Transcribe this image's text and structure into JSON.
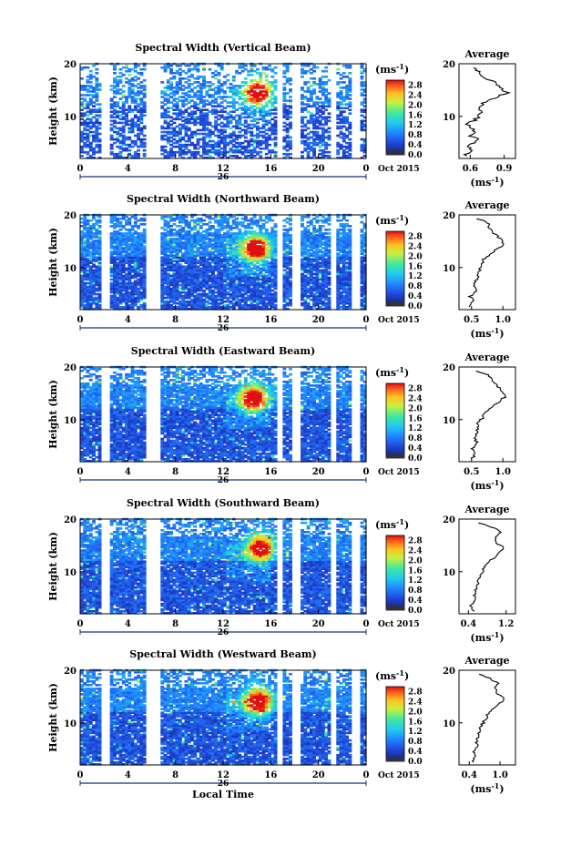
{
  "chart_data": [
    {
      "type": "heatmap",
      "title": "Spectral Width (Vertical Beam)",
      "ylabel": "Height (km)",
      "x_ticks": [
        "0",
        "4",
        "8",
        "12",
        "16",
        "20",
        "0"
      ],
      "y_ticks": [
        "20",
        "10"
      ],
      "xlim": [
        0,
        24
      ],
      "ylim": [
        2,
        20
      ],
      "date_mark": "26",
      "date_note": "Oct 2015",
      "gaps_hours": [
        2,
        5.8,
        6.2,
        16.6,
        18.0,
        21.2,
        23.0
      ],
      "hotspot": {
        "time": 14.8,
        "height": 14.5,
        "value": 2.8
      },
      "colorbar": {
        "unit": "(ms",
        "unit_exp": "-1",
        "unit_close": ")",
        "ticks": [
          "2.8",
          "2.4",
          "2.0",
          "1.6",
          "1.2",
          "0.8",
          "0.4",
          "0.0"
        ],
        "range": [
          0,
          3.0
        ]
      },
      "average": {
        "title": "Average",
        "x_ticks": [
          "0.6",
          "0.9"
        ],
        "xlim": [
          0.5,
          1.0
        ],
        "y_ticks": [
          "20",
          "10"
        ],
        "ylim": [
          2,
          20
        ],
        "xlabel": "(ms",
        "xlabel_exp": "-1",
        "xlabel_close": ")",
        "heights": [
          2.5,
          3.5,
          4.5,
          5.5,
          6.5,
          7.5,
          8.5,
          9.5,
          10.5,
          11.5,
          12.5,
          13.5,
          14.5,
          15.5,
          16.5,
          17.5,
          18.5,
          19.5
        ],
        "values": [
          0.55,
          0.62,
          0.58,
          0.66,
          0.6,
          0.63,
          0.59,
          0.64,
          0.7,
          0.68,
          0.72,
          0.8,
          0.92,
          0.86,
          0.8,
          0.72,
          0.66,
          0.6
        ]
      }
    },
    {
      "type": "heatmap",
      "title": "Spectral Width (Northward Beam)",
      "ylabel": "Height (km)",
      "x_ticks": [
        "0",
        "4",
        "8",
        "12",
        "16",
        "20",
        "0"
      ],
      "y_ticks": [
        "20",
        "10"
      ],
      "xlim": [
        0,
        24
      ],
      "ylim": [
        2,
        20
      ],
      "date_mark": "26",
      "date_note": "Oct 2015",
      "gaps_hours": [
        2,
        5.8,
        6.2,
        16.6,
        18.0,
        21.2,
        23.0
      ],
      "hotspot": {
        "time": 14.6,
        "height": 13.5,
        "value": 2.8
      },
      "colorbar": {
        "unit": "(ms",
        "unit_exp": "-1",
        "unit_close": ")",
        "ticks": [
          "2.8",
          "2.4",
          "2.0",
          "1.6",
          "1.2",
          "0.8",
          "0.4",
          "0.0"
        ],
        "range": [
          0,
          3.0
        ]
      },
      "average": {
        "title": "Average",
        "x_ticks": [
          "0.5",
          "1.0"
        ],
        "xlim": [
          0.3,
          1.2
        ],
        "y_ticks": [
          "20",
          "10"
        ],
        "ylim": [
          2,
          20
        ],
        "xlabel": "(ms",
        "xlabel_exp": "-1",
        "xlabel_close": ")",
        "heights": [
          2.5,
          3.5,
          4.5,
          5.5,
          6.5,
          7.5,
          8.5,
          9.5,
          10.5,
          11.5,
          12.5,
          13.5,
          14.5,
          15.5,
          16.5,
          17.5,
          18.5,
          19.5
        ],
        "values": [
          0.45,
          0.52,
          0.48,
          0.56,
          0.55,
          0.58,
          0.6,
          0.62,
          0.66,
          0.7,
          0.78,
          0.9,
          1.02,
          0.95,
          0.85,
          0.8,
          0.75,
          0.55
        ]
      }
    },
    {
      "type": "heatmap",
      "title": "Spectral Width (Eastward Beam)",
      "ylabel": "Height (km)",
      "x_ticks": [
        "0",
        "4",
        "8",
        "12",
        "16",
        "20",
        "0"
      ],
      "y_ticks": [
        "20",
        "10"
      ],
      "xlim": [
        0,
        24
      ],
      "ylim": [
        2,
        20
      ],
      "date_mark": "26",
      "date_note": "Oct 2015",
      "gaps_hours": [
        2,
        5.8,
        6.2,
        16.6,
        18.0,
        21.2,
        23.0
      ],
      "hotspot": {
        "time": 14.4,
        "height": 14.0,
        "value": 2.8
      },
      "colorbar": {
        "unit": "(ms",
        "unit_exp": "-1",
        "unit_close": ")",
        "ticks": [
          "2.8",
          "2.4",
          "2.0",
          "1.6",
          "1.2",
          "0.8",
          "0.4",
          "0.0"
        ],
        "range": [
          0,
          3.0
        ]
      },
      "average": {
        "title": "Average",
        "x_ticks": [
          "0.5",
          "1.0"
        ],
        "xlim": [
          0.3,
          1.2
        ],
        "y_ticks": [
          "20",
          "10"
        ],
        "ylim": [
          2,
          20
        ],
        "xlabel": "(ms",
        "xlabel_exp": "-1",
        "xlabel_close": ")",
        "heights": [
          2.5,
          3.5,
          4.5,
          5.5,
          6.5,
          7.5,
          8.5,
          9.5,
          10.5,
          11.5,
          12.5,
          13.5,
          14.5,
          15.5,
          16.5,
          17.5,
          18.5,
          19.5
        ],
        "values": [
          0.5,
          0.55,
          0.52,
          0.58,
          0.56,
          0.6,
          0.58,
          0.62,
          0.68,
          0.72,
          0.82,
          0.95,
          1.05,
          0.98,
          0.9,
          0.85,
          0.78,
          0.5
        ]
      }
    },
    {
      "type": "heatmap",
      "title": "Spectral Width (Southward Beam)",
      "ylabel": "Height (km)",
      "x_ticks": [
        "0",
        "4",
        "8",
        "12",
        "16",
        "20",
        "0"
      ],
      "y_ticks": [
        "20",
        "10"
      ],
      "xlim": [
        0,
        24
      ],
      "ylim": [
        2,
        20
      ],
      "date_mark": "26",
      "date_note": "Oct 2015",
      "gaps_hours": [
        2,
        5.8,
        6.2,
        16.6,
        18.0,
        21.2,
        23.0
      ],
      "hotspot": {
        "time": 15.0,
        "height": 14.5,
        "value": 2.6
      },
      "colorbar": {
        "unit": "(ms",
        "unit_exp": "-1",
        "unit_close": ")",
        "ticks": [
          "2.8",
          "2.4",
          "2.0",
          "1.6",
          "1.2",
          "0.8",
          "0.4",
          "0.0"
        ],
        "range": [
          0,
          3.0
        ]
      },
      "average": {
        "title": "Average",
        "x_ticks": [
          "0.4",
          "1.2"
        ],
        "xlim": [
          0.2,
          1.4
        ],
        "y_ticks": [
          "20",
          "10"
        ],
        "ylim": [
          2,
          20
        ],
        "xlabel": "(ms",
        "xlabel_exp": "-1",
        "xlabel_close": ")",
        "heights": [
          2.5,
          3.5,
          4.5,
          5.5,
          6.5,
          7.5,
          8.5,
          9.5,
          10.5,
          11.5,
          12.5,
          13.5,
          14.5,
          15.5,
          16.5,
          17.5,
          18.5,
          19.5
        ],
        "values": [
          0.5,
          0.45,
          0.55,
          0.52,
          0.56,
          0.6,
          0.62,
          0.68,
          0.72,
          0.8,
          0.92,
          1.05,
          1.15,
          1.0,
          0.95,
          1.1,
          0.9,
          0.55
        ]
      }
    },
    {
      "type": "heatmap",
      "title": "Spectral Width (Westward Beam)",
      "ylabel": "Height (km)",
      "x_ticks": [
        "0",
        "4",
        "8",
        "12",
        "16",
        "20",
        "0"
      ],
      "y_ticks": [
        "20",
        "10"
      ],
      "xlim": [
        0,
        24
      ],
      "ylim": [
        2,
        20
      ],
      "date_mark": "26",
      "date_note": "Oct 2015",
      "xlabel": "Local Time",
      "gaps_hours": [
        2,
        5.8,
        6.2,
        16.6,
        18.0,
        21.2,
        23.0
      ],
      "hotspot": {
        "time": 14.8,
        "height": 14.0,
        "value": 2.8
      },
      "colorbar": {
        "unit": "(ms",
        "unit_exp": "-1",
        "unit_close": ")",
        "ticks": [
          "2.8",
          "2.4",
          "2.0",
          "1.6",
          "1.2",
          "0.8",
          "0.4",
          "0.0"
        ],
        "range": [
          0,
          3.0
        ]
      },
      "average": {
        "title": "Average",
        "x_ticks": [
          "0.4",
          "1.0"
        ],
        "xlim": [
          0.2,
          1.3
        ],
        "y_ticks": [
          "20",
          "10"
        ],
        "ylim": [
          2,
          20
        ],
        "xlabel": "(ms",
        "xlabel_exp": "-1",
        "xlabel_close": ")",
        "heights": [
          2.5,
          3.5,
          4.5,
          5.5,
          6.5,
          7.5,
          8.5,
          9.5,
          10.5,
          11.5,
          12.5,
          13.5,
          14.5,
          15.5,
          16.5,
          17.5,
          18.5,
          19.5
        ],
        "values": [
          0.48,
          0.52,
          0.5,
          0.55,
          0.54,
          0.58,
          0.6,
          0.64,
          0.7,
          0.76,
          0.86,
          0.98,
          1.08,
          0.96,
          0.9,
          0.95,
          0.8,
          0.52
        ]
      }
    }
  ]
}
